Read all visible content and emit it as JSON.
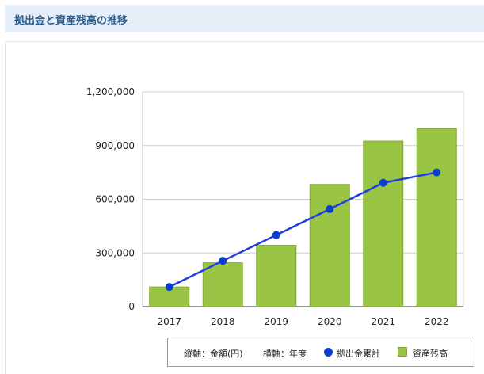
{
  "header": {
    "title": "拠出金と資産残高の推移"
  },
  "legend": {
    "vertical_axis": "縦軸：金額(円)",
    "horizontal_axis": "横軸：年度",
    "line_series": "拠出金累計",
    "bar_series": "資産残高"
  },
  "colors": {
    "bar_fill": "#99c444",
    "bar_stroke": "#7fa83a",
    "line": "#1f3fe0",
    "marker": "#0b3fd0",
    "grid": "#cfcfcf",
    "header_bg": "#e6eef8",
    "header_text": "#2a5b8a"
  },
  "chart_data": {
    "type": "bar",
    "categories": [
      "2017",
      "2018",
      "2019",
      "2020",
      "2021",
      "2022"
    ],
    "ylim": [
      0,
      1200000
    ],
    "yticks": [
      0,
      300000,
      600000,
      900000,
      1200000
    ],
    "ytick_labels": [
      "0",
      "300,000",
      "600,000",
      "900,000",
      "1,200,000"
    ],
    "grid": true,
    "legend_position": "bottom",
    "series": [
      {
        "name": "資産残高",
        "type": "bar",
        "values": [
          110000,
          245000,
          343000,
          683000,
          925000,
          995000
        ]
      },
      {
        "name": "拠出金累計",
        "type": "line",
        "values": [
          110000,
          256000,
          400000,
          545000,
          692000,
          750000
        ]
      }
    ]
  }
}
